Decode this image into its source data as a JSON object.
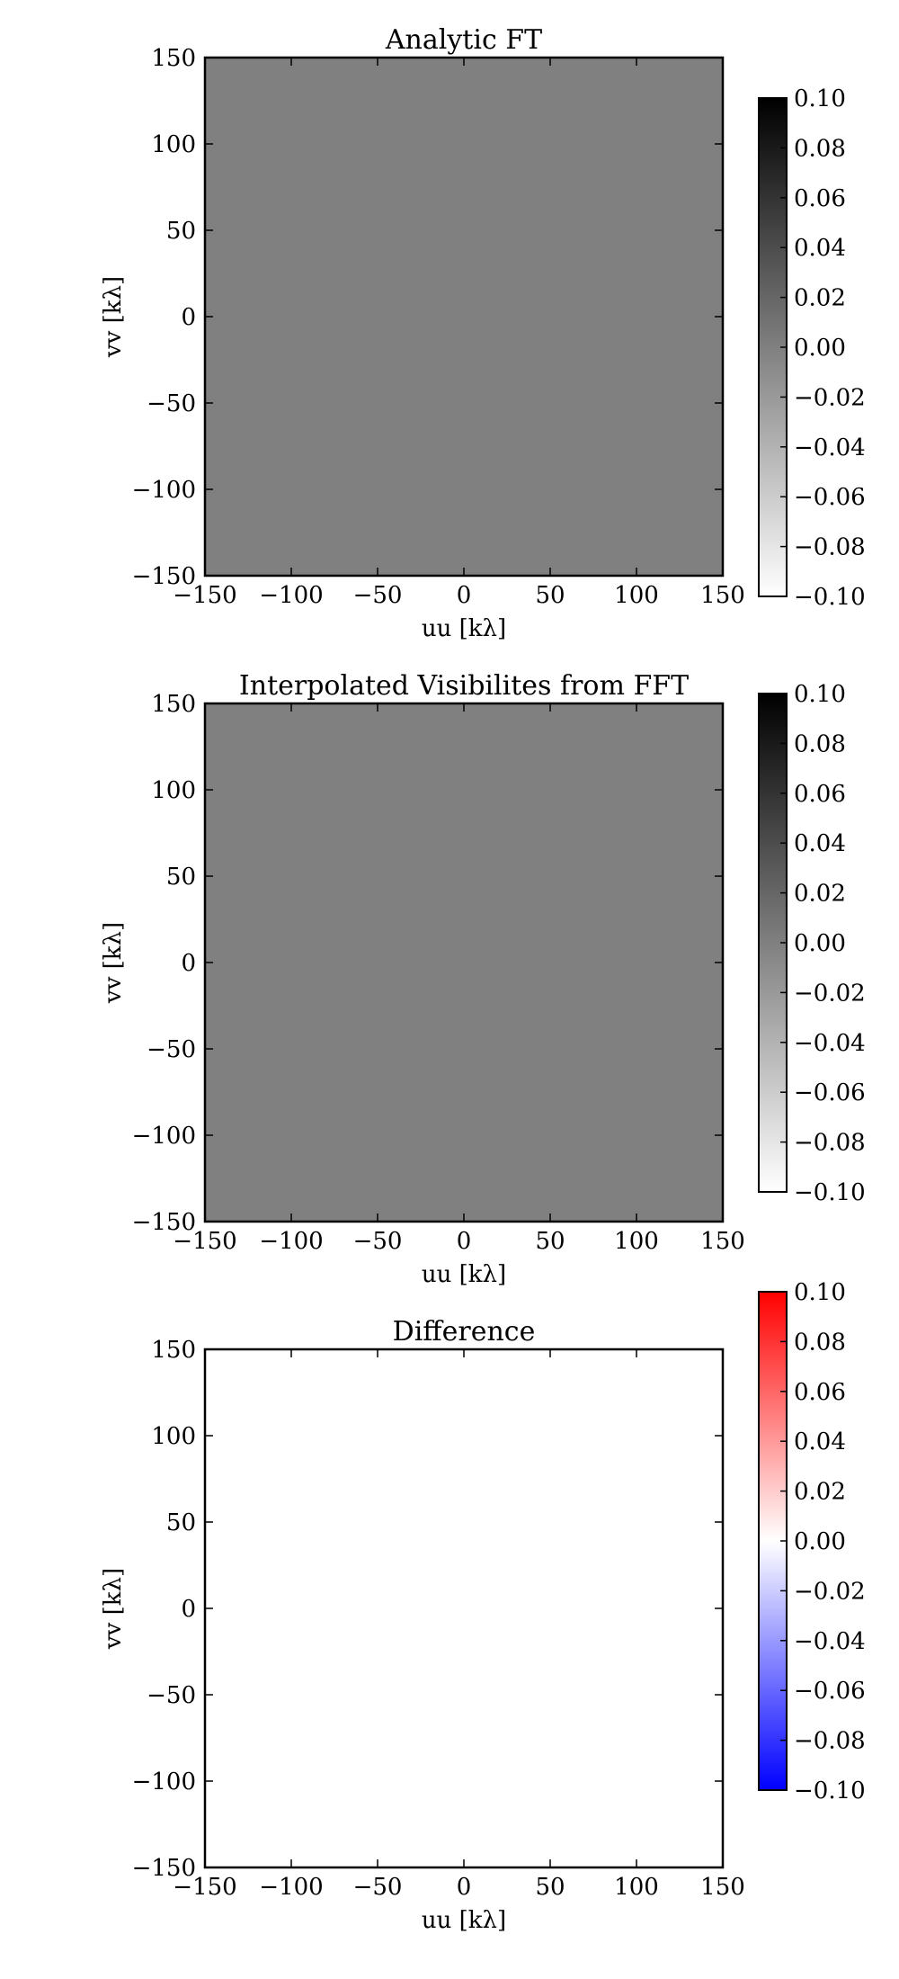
{
  "chart_data": [
    {
      "type": "heatmap",
      "title": "Analytic FT",
      "xlabel": "uu [kλ]",
      "ylabel": "vv [kλ]",
      "xlim": [
        -150,
        150
      ],
      "ylim": [
        -150,
        150
      ],
      "xticks": [
        "−150",
        "−100",
        "−50",
        "0",
        "50",
        "100",
        "150"
      ],
      "yticks": [
        "150",
        "100",
        "50",
        "0",
        "−50",
        "−100",
        "−150"
      ],
      "x_values": [
        -150,
        -100,
        -50,
        0,
        50,
        100,
        150
      ],
      "y_values": [
        150,
        100,
        50,
        0,
        -50,
        -100,
        -150
      ],
      "field_value": 0.0,
      "colormap": "gray_r",
      "colorbar": {
        "range": [
          -0.1,
          0.1
        ],
        "ticks": [
          "0.10",
          "0.08",
          "0.06",
          "0.04",
          "0.02",
          "0.00",
          "−0.02",
          "−0.04",
          "−0.06",
          "−0.08",
          "−0.10"
        ],
        "values": [
          0.1,
          0.08,
          0.06,
          0.04,
          0.02,
          0.0,
          -0.02,
          -0.04,
          -0.06,
          -0.08,
          -0.1
        ],
        "colors": {
          "low": "#ffffff",
          "high": "#000000"
        }
      }
    },
    {
      "type": "heatmap",
      "title": "Interpolated Visibilites from FFT",
      "xlabel": "uu [kλ]",
      "ylabel": "vv [kλ]",
      "xlim": [
        -150,
        150
      ],
      "ylim": [
        -150,
        150
      ],
      "xticks": [
        "−150",
        "−100",
        "−50",
        "0",
        "50",
        "100",
        "150"
      ],
      "yticks": [
        "150",
        "100",
        "50",
        "0",
        "−50",
        "−100",
        "−150"
      ],
      "x_values": [
        -150,
        -100,
        -50,
        0,
        50,
        100,
        150
      ],
      "y_values": [
        150,
        100,
        50,
        0,
        -50,
        -100,
        -150
      ],
      "field_value": 0.0,
      "colormap": "gray_r",
      "colorbar": {
        "range": [
          -0.1,
          0.1
        ],
        "ticks": [
          "0.10",
          "0.08",
          "0.06",
          "0.04",
          "0.02",
          "0.00",
          "−0.02",
          "−0.04",
          "−0.06",
          "−0.08",
          "−0.10"
        ],
        "values": [
          0.1,
          0.08,
          0.06,
          0.04,
          0.02,
          0.0,
          -0.02,
          -0.04,
          -0.06,
          -0.08,
          -0.1
        ],
        "colors": {
          "low": "#ffffff",
          "high": "#000000"
        }
      }
    },
    {
      "type": "heatmap",
      "title": "Difference",
      "xlabel": "uu [kλ]",
      "ylabel": "vv [kλ]",
      "xlim": [
        -150,
        150
      ],
      "ylim": [
        -150,
        150
      ],
      "xticks": [
        "−150",
        "−100",
        "−50",
        "0",
        "50",
        "100",
        "150"
      ],
      "yticks": [
        "150",
        "100",
        "50",
        "0",
        "−50",
        "−100",
        "−150"
      ],
      "x_values": [
        -150,
        -100,
        -50,
        0,
        50,
        100,
        150
      ],
      "y_values": [
        150,
        100,
        50,
        0,
        -50,
        -100,
        -150
      ],
      "field_value": 0.0,
      "colormap": "bwr",
      "colorbar": {
        "range": [
          -0.1,
          0.1
        ],
        "ticks": [
          "0.10",
          "0.08",
          "0.06",
          "0.04",
          "0.02",
          "0.00",
          "−0.02",
          "−0.04",
          "−0.06",
          "−0.08",
          "−0.10"
        ],
        "values": [
          0.1,
          0.08,
          0.06,
          0.04,
          0.02,
          0.0,
          -0.02,
          -0.04,
          -0.06,
          -0.08,
          -0.1
        ],
        "colors": {
          "low": "#0000ff",
          "mid": "#ffffff",
          "high": "#ff0000"
        }
      }
    }
  ]
}
